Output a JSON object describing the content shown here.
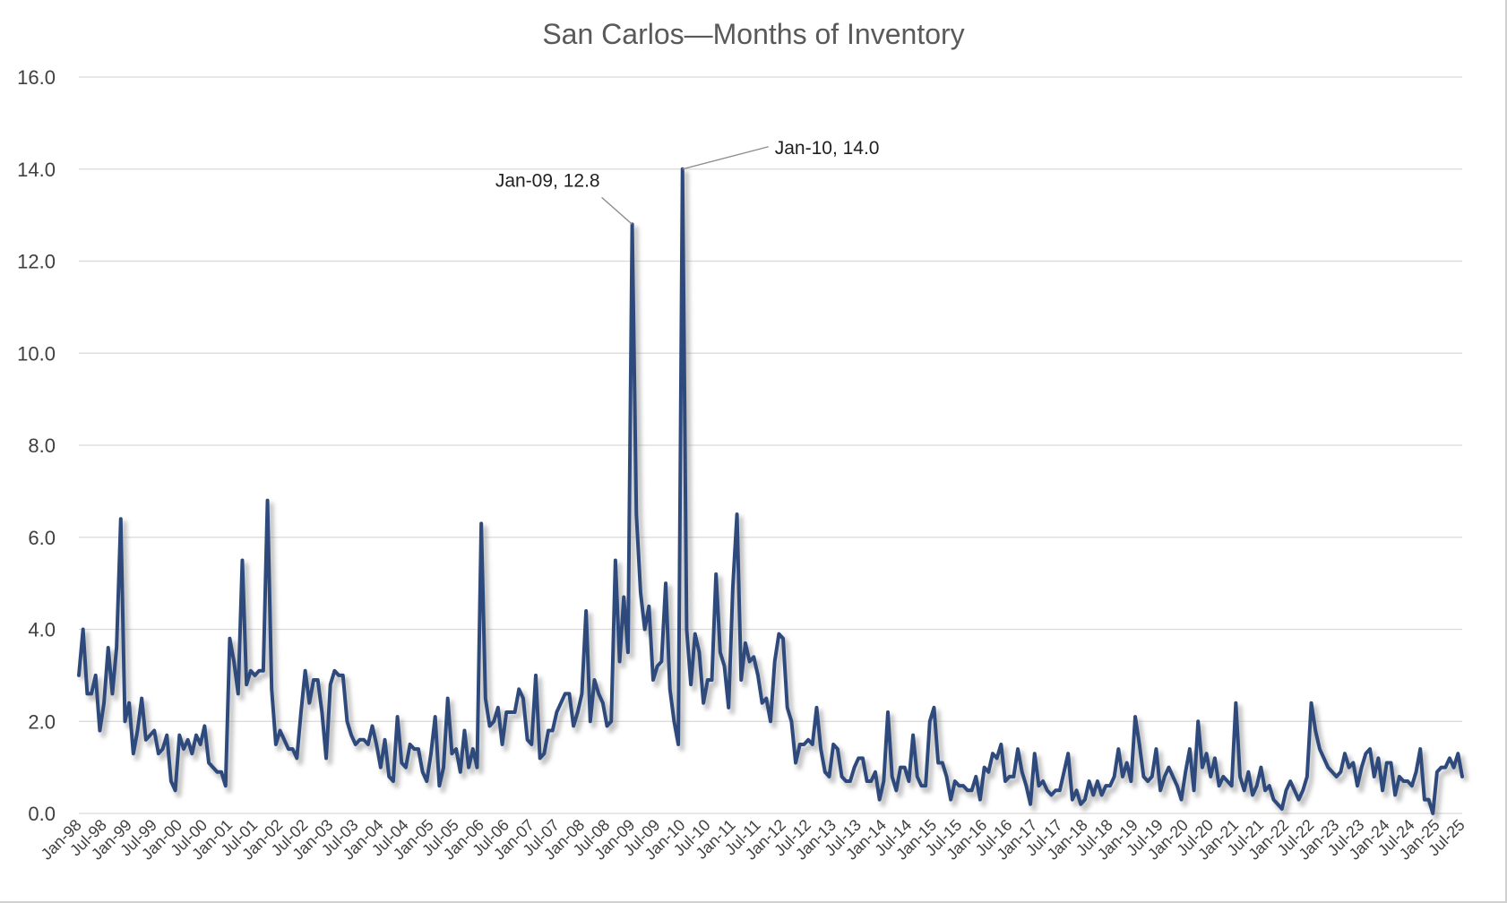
{
  "chart_data": {
    "type": "line",
    "title": "San Carlos—Months of Inventory",
    "xlabel": "",
    "ylabel": "",
    "ylim": [
      0,
      16
    ],
    "yticks": [
      "0.0",
      "2.0",
      "4.0",
      "6.0",
      "8.0",
      "10.0",
      "12.0",
      "14.0",
      "16.0"
    ],
    "ytick_values": [
      0,
      2,
      4,
      6,
      8,
      10,
      12,
      14,
      16
    ],
    "grid": true,
    "legend": "none",
    "x_tick_labels": [
      "Jan-98",
      "Jul-98",
      "Jan-99",
      "Jul-99",
      "Jan-00",
      "Jul-00",
      "Jan-01",
      "Jul-01",
      "Jan-02",
      "Jul-02",
      "Jan-03",
      "Jul-03",
      "Jan-04",
      "Jul-04",
      "Jan-05",
      "Jul-05",
      "Jan-06",
      "Jul-06",
      "Jan-07",
      "Jul-07",
      "Jan-08",
      "Jul-08",
      "Jan-09",
      "Jul-09",
      "Jan-10",
      "Jul-10",
      "Jan-11",
      "Jul-11",
      "Jan-12",
      "Jul-12",
      "Jan-13",
      "Jul-13",
      "Jan-14",
      "Jul-14",
      "Jan-15",
      "Jul-15",
      "Jan-16",
      "Jul-16",
      "Jan-17",
      "Jul-17",
      "Jan-18",
      "Jul-18",
      "Jan-19",
      "Jul-19",
      "Jan-20",
      "Jul-20",
      "Jan-21",
      "Jul-21",
      "Jan-22",
      "Jul-22",
      "Jan-23",
      "Jul-23",
      "Jan-24",
      "Jul-24",
      "Jan-25",
      "Jul-25"
    ],
    "series": [
      {
        "name": "Months of Inventory",
        "color": "#2e4a7d",
        "start": "Jan-98",
        "frequency": "monthly",
        "values": [
          3.0,
          4.0,
          2.6,
          2.6,
          3.0,
          1.8,
          2.4,
          3.6,
          2.6,
          3.6,
          6.4,
          2.0,
          2.4,
          1.3,
          1.8,
          2.5,
          1.6,
          1.7,
          1.8,
          1.3,
          1.4,
          1.7,
          0.7,
          0.5,
          1.7,
          1.4,
          1.6,
          1.3,
          1.7,
          1.5,
          1.9,
          1.1,
          1.0,
          0.9,
          0.9,
          0.6,
          3.8,
          3.3,
          2.6,
          5.5,
          2.8,
          3.1,
          3.0,
          3.1,
          3.1,
          6.8,
          2.7,
          1.5,
          1.8,
          1.6,
          1.4,
          1.4,
          1.2,
          2.2,
          3.1,
          2.4,
          2.9,
          2.9,
          2.2,
          1.2,
          2.8,
          3.1,
          3.0,
          3.0,
          2.0,
          1.7,
          1.5,
          1.6,
          1.6,
          1.5,
          1.9,
          1.5,
          1.0,
          1.6,
          0.8,
          0.7,
          2.1,
          1.1,
          1.0,
          1.5,
          1.4,
          1.4,
          0.9,
          0.7,
          1.3,
          2.1,
          0.6,
          1.0,
          2.5,
          1.3,
          1.4,
          0.9,
          1.8,
          1.0,
          1.4,
          1.0,
          6.3,
          2.5,
          1.9,
          2.0,
          2.3,
          1.5,
          2.2,
          2.2,
          2.2,
          2.7,
          2.5,
          1.6,
          1.5,
          3.0,
          1.2,
          1.3,
          1.8,
          1.8,
          2.2,
          2.4,
          2.6,
          2.6,
          1.9,
          2.2,
          2.6,
          4.4,
          2.0,
          2.9,
          2.6,
          2.4,
          1.9,
          2.0,
          5.5,
          3.3,
          4.7,
          3.5,
          12.8,
          6.5,
          4.8,
          4.0,
          4.5,
          2.9,
          3.2,
          3.3,
          5.0,
          2.7,
          2.0,
          1.5,
          14.0,
          4.0,
          2.8,
          3.9,
          3.5,
          2.4,
          2.9,
          2.9,
          5.2,
          3.5,
          3.2,
          2.3,
          4.9,
          6.5,
          2.9,
          3.7,
          3.3,
          3.4,
          3.0,
          2.4,
          2.5,
          2.0,
          3.3,
          3.9,
          3.8,
          2.3,
          2.0,
          1.1,
          1.5,
          1.5,
          1.6,
          1.5,
          2.3,
          1.4,
          0.9,
          0.8,
          1.5,
          1.4,
          0.8,
          0.7,
          0.7,
          1.0,
          1.2,
          1.2,
          0.7,
          0.7,
          0.9,
          0.3,
          0.7,
          2.2,
          0.8,
          0.5,
          1.0,
          1.0,
          0.7,
          1.7,
          0.8,
          0.6,
          0.6,
          2.0,
          2.3,
          1.1,
          1.1,
          0.8,
          0.3,
          0.7,
          0.6,
          0.6,
          0.5,
          0.5,
          0.8,
          0.3,
          1.0,
          0.9,
          1.3,
          1.2,
          1.5,
          0.7,
          0.8,
          0.8,
          1.4,
          0.9,
          0.6,
          0.2,
          1.3,
          0.6,
          0.7,
          0.5,
          0.4,
          0.5,
          0.5,
          0.9,
          1.3,
          0.3,
          0.5,
          0.2,
          0.3,
          0.7,
          0.4,
          0.7,
          0.4,
          0.6,
          0.6,
          0.8,
          1.4,
          0.8,
          1.1,
          0.7,
          2.1,
          1.5,
          0.8,
          0.7,
          0.8,
          1.4,
          0.5,
          0.8,
          1.0,
          0.8,
          0.6,
          0.3,
          0.9,
          1.4,
          0.5,
          2.0,
          1.0,
          1.3,
          0.8,
          1.2,
          0.6,
          0.8,
          0.7,
          0.6,
          2.4,
          0.8,
          0.5,
          0.9,
          0.4,
          0.6,
          1.0,
          0.5,
          0.6,
          0.3,
          0.2,
          0.1,
          0.5,
          0.7,
          0.5,
          0.3,
          0.5,
          0.8,
          2.4,
          1.8,
          1.4,
          1.2,
          1.0,
          0.9,
          0.8,
          0.9,
          1.3,
          1.0,
          1.1,
          0.6,
          1.0,
          1.3,
          1.4,
          0.8,
          1.2,
          0.5,
          1.1,
          1.1,
          0.4,
          0.8,
          0.7,
          0.7,
          0.6,
          0.9,
          1.4,
          0.3,
          0.3,
          0.0,
          0.9,
          1.0,
          1.0,
          1.2,
          1.0,
          1.3,
          0.8
        ]
      }
    ],
    "annotations": [
      {
        "text": "Jan-09, 12.8",
        "x": "Jan-09",
        "y": 12.8
      },
      {
        "text": "Jan-10, 14.0",
        "x": "Jan-10",
        "y": 14.0
      }
    ]
  }
}
